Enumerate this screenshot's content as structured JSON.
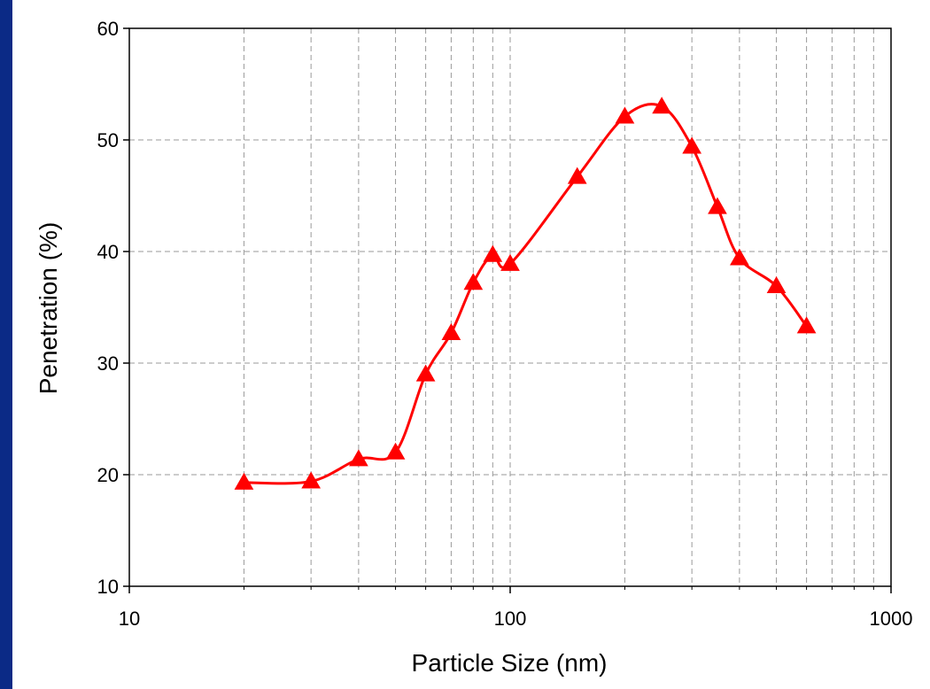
{
  "chart_data": {
    "type": "line",
    "title": "",
    "xlabel": "Particle Size (nm)",
    "ylabel": "Penetration (%)",
    "x_scale": "log",
    "xlim": [
      10,
      1000
    ],
    "ylim": [
      10,
      60
    ],
    "x_ticks": [
      "10",
      "100",
      "1000"
    ],
    "y_ticks": [
      "10",
      "20",
      "30",
      "40",
      "50",
      "60"
    ],
    "grid": true,
    "legend": "none",
    "series": [
      {
        "marker": "triangle",
        "color": "#ff0000",
        "x": [
          20,
          30,
          40,
          50,
          60,
          70,
          80,
          90,
          100,
          150,
          200,
          250,
          300,
          350,
          400,
          500,
          600
        ],
        "y": [
          19.3,
          19.4,
          21.4,
          22.0,
          29.0,
          32.7,
          37.2,
          39.7,
          38.9,
          46.7,
          52.1,
          53.0,
          49.4,
          44.0,
          39.4,
          36.9,
          33.3
        ]
      }
    ]
  }
}
